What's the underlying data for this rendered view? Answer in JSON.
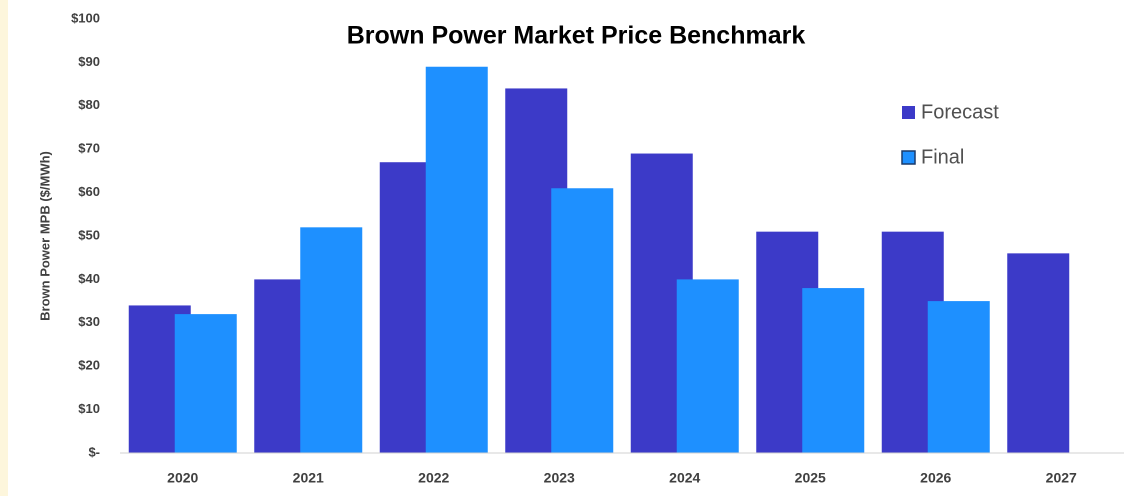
{
  "chart_data": {
    "type": "bar",
    "title": "Brown Power Market Price Benchmark",
    "y_label": "Brown Power MPB ($/MWh)",
    "categories": [
      "2020",
      "2021",
      "2022",
      "2023",
      "2024",
      "2025",
      "2026",
      "2027"
    ],
    "series": [
      {
        "name": "Forecast",
        "color": "#3c3ac8",
        "values": [
          34,
          40,
          67,
          84,
          69,
          51,
          51,
          46
        ]
      },
      {
        "name": "Final",
        "color": "#1e90ff",
        "values": [
          32,
          52,
          89,
          61,
          40,
          38,
          35,
          null
        ]
      }
    ],
    "ylim": [
      0,
      100
    ],
    "yticks": [
      {
        "value": 0,
        "label": "$-"
      },
      {
        "value": 10,
        "label": "$10"
      },
      {
        "value": 20,
        "label": "$20"
      },
      {
        "value": 30,
        "label": "$30"
      },
      {
        "value": 40,
        "label": "$40"
      },
      {
        "value": 50,
        "label": "$50"
      },
      {
        "value": 60,
        "label": "$60"
      },
      {
        "value": 70,
        "label": "$70"
      },
      {
        "value": 80,
        "label": "$80"
      },
      {
        "value": 90,
        "label": "$90"
      },
      {
        "value": 100,
        "label": "$100"
      }
    ],
    "grid": false,
    "legend": "right"
  }
}
